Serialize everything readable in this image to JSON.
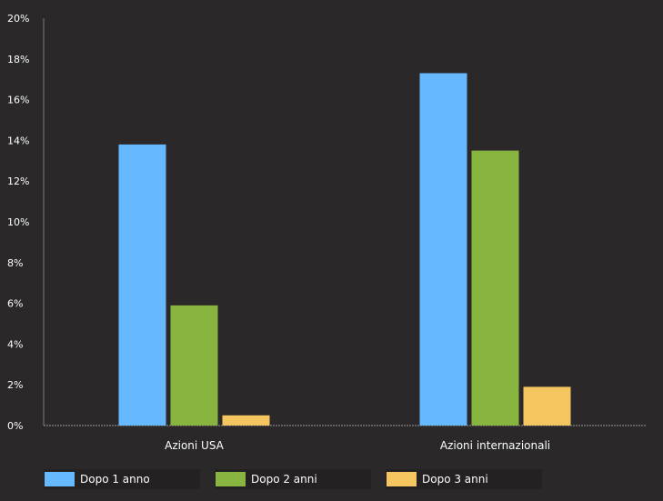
{
  "chart_data": {
    "type": "bar",
    "categories": [
      "Azioni USA",
      "Azioni internazionali"
    ],
    "series": [
      {
        "name": "Dopo 1 anno",
        "values": [
          13.8,
          17.3
        ],
        "color": "#66b8ff"
      },
      {
        "name": "Dopo 2 anni",
        "values": [
          5.9,
          13.5
        ],
        "color": "#88b540"
      },
      {
        "name": "Dopo 3 anni",
        "values": [
          0.5,
          1.9
        ],
        "color": "#f5c660"
      }
    ],
    "yticks": [
      "0%",
      "2%",
      "4%",
      "6%",
      "8%",
      "10%",
      "12%",
      "14%",
      "16%",
      "18%",
      "20%"
    ],
    "ylim": [
      0,
      20
    ],
    "grid": false,
    "legend_position": "bottom-left"
  }
}
